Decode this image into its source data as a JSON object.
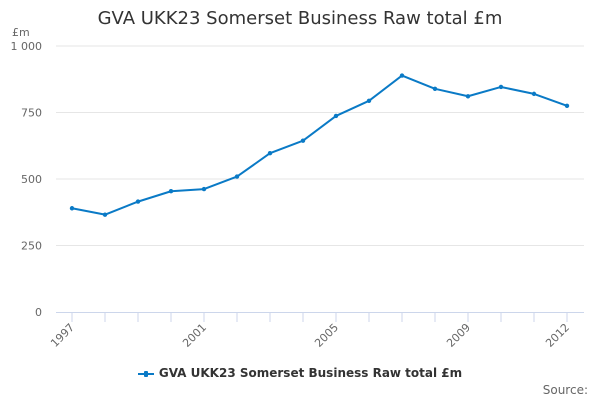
{
  "chart_data": {
    "type": "line",
    "title": "GVA UKK23 Somerset Business Raw total £m",
    "ylabel": "£m",
    "xlabel": "",
    "ylim": [
      0,
      1000
    ],
    "yticks": [
      0,
      250,
      500,
      750,
      1000
    ],
    "ytick_labels": [
      "0",
      "250",
      "500",
      "750",
      "1 000"
    ],
    "x": [
      1997,
      1998,
      1999,
      2000,
      2001,
      2002,
      2003,
      2004,
      2005,
      2006,
      2007,
      2008,
      2009,
      2010,
      2011,
      2012
    ],
    "xtick_labels": [
      "1997",
      "2001",
      "2005",
      "2009",
      "2012"
    ],
    "series": [
      {
        "name": "GVA UKK23 Somerset Business Raw total £m",
        "color": "#0a7ac6",
        "values": [
          390,
          366,
          415,
          454,
          462,
          509,
          597,
          644,
          737,
          794,
          889,
          839,
          811,
          846,
          820,
          775
        ]
      }
    ],
    "grid": true,
    "legend": "bottom-center",
    "source": "Source:"
  }
}
